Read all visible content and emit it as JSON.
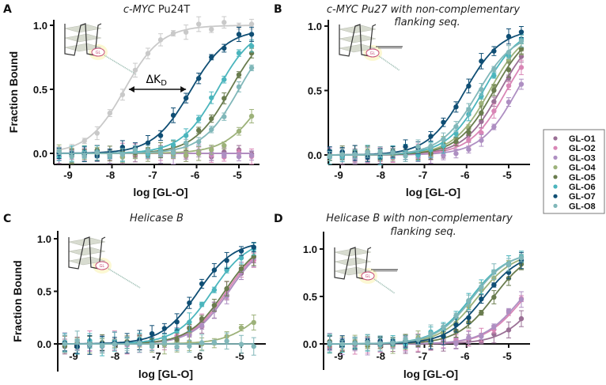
{
  "chart_data": [
    {
      "panel": "A",
      "type": "scatter",
      "title": "c-MYC Pu24T",
      "title_italic_part": "c-MYC",
      "title_rest": " Pu24T",
      "xlabel": "log [GL-O]",
      "ylabel": "Fraction Bound",
      "xlim": [
        -9.35,
        -4.6
      ],
      "ylim": [
        -0.06,
        1.0
      ],
      "xticks": [
        "-9",
        "-8",
        "-7",
        "-6",
        "-5"
      ],
      "yticks": [
        "0.0",
        "0.5",
        "1.0"
      ],
      "annotation": "ΔK",
      "annotation_sub": "D",
      "schematic": "plain",
      "series": [
        {
          "name": "reference",
          "logEC50": -7.7,
          "top": 1.0
        },
        {
          "name": "GL-O1",
          "logEC50": null,
          "top": 0
        },
        {
          "name": "GL-O2",
          "logEC50": null,
          "top": 0
        },
        {
          "name": "GL-O3",
          "logEC50": null,
          "top": 0
        },
        {
          "name": "GL-O4",
          "logEC50": -4.45,
          "top": 0.8
        },
        {
          "name": "GL-O5",
          "logEC50": -5.2,
          "top": 1.0
        },
        {
          "name": "GL-O6",
          "logEC50": -5.5,
          "top": 1.0
        },
        {
          "name": "GL-O7",
          "logEC50": -6.15,
          "top": 0.97
        },
        {
          "name": "GL-O8",
          "logEC50": -5.0,
          "top": 1.0
        }
      ]
    },
    {
      "panel": "B",
      "type": "scatter",
      "title": "c-MYC Pu27 with non-complementary flanking seq.",
      "title_line1": "c-MYC Pu27 with non-complementary",
      "title_line2": "flanking seq.",
      "xlabel": "log [GL-O]",
      "ylabel": "Fraction Bound",
      "xlim": [
        -9.35,
        -4.6
      ],
      "ylim": [
        -0.06,
        1.0
      ],
      "xticks": [
        "-9",
        "-8",
        "-7",
        "-6",
        "-5"
      ],
      "yticks": [
        "0.0",
        "0.5",
        "1.0"
      ],
      "schematic": "flank",
      "series": [
        {
          "name": "GL-O1",
          "logEC50": -5.2,
          "top": 1.0
        },
        {
          "name": "GL-O2",
          "logEC50": -5.05,
          "top": 1.0
        },
        {
          "name": "GL-O3",
          "logEC50": -4.8,
          "top": 1.0
        },
        {
          "name": "GL-O4",
          "logEC50": -5.45,
          "top": 1.0
        },
        {
          "name": "GL-O5",
          "logEC50": -5.35,
          "top": 1.0
        },
        {
          "name": "GL-O6",
          "logEC50": -5.6,
          "top": 1.0
        },
        {
          "name": "GL-O7",
          "logEC50": -6.05,
          "top": 0.98
        },
        {
          "name": "GL-O8",
          "logEC50": -5.75,
          "top": 0.95
        }
      ]
    },
    {
      "panel": "C",
      "type": "scatter",
      "title": "Helicase B",
      "xlabel": "log [GL-O]",
      "ylabel": "Fraction Bound",
      "xlim": [
        -9.45,
        -4.5
      ],
      "ylim": [
        -0.25,
        1.05
      ],
      "xticks": [
        "-9",
        "-8",
        "-7",
        "-6",
        "-5"
      ],
      "yticks": [
        "0.0",
        "0.5",
        "1.0"
      ],
      "schematic": "plain",
      "series": [
        {
          "name": "GL-O1",
          "logEC50": -5.3,
          "top": 1.0
        },
        {
          "name": "GL-O2",
          "logEC50": -5.35,
          "top": 1.0
        },
        {
          "name": "GL-O3",
          "logEC50": -5.3,
          "top": 1.0
        },
        {
          "name": "GL-O4",
          "logEC50": -4.45,
          "top": 0.6
        },
        {
          "name": "GL-O5",
          "logEC50": -5.4,
          "top": 1.0
        },
        {
          "name": "GL-O6",
          "logEC50": -5.7,
          "top": 1.0
        },
        {
          "name": "GL-O7",
          "logEC50": -6.05,
          "top": 0.98
        },
        {
          "name": "GL-O8",
          "logEC50": null,
          "top": 0
        }
      ]
    },
    {
      "panel": "D",
      "type": "scatter",
      "title": "Helicase B with non-complementary flanking seq.",
      "title_line1": "Helicase B with non-complementary",
      "title_line2": "flanking seq.",
      "xlabel": "log [GL-O]",
      "ylabel": "Fraction Bound",
      "xlim": [
        -9.45,
        -4.5
      ],
      "ylim": [
        -0.25,
        1.2
      ],
      "xticks": [
        "-9",
        "-8",
        "-7",
        "-6",
        "-5"
      ],
      "yticks": [
        "0.0",
        "0.5",
        "1.0"
      ],
      "schematic": "flank",
      "series": [
        {
          "name": "GL-O1",
          "logEC50": -4.3,
          "top": 0.9
        },
        {
          "name": "GL-O2",
          "logEC50": -4.7,
          "top": 0.9
        },
        {
          "name": "GL-O3",
          "logEC50": -4.75,
          "top": 0.9
        },
        {
          "name": "GL-O4",
          "logEC50": -5.75,
          "top": 0.97
        },
        {
          "name": "GL-O5",
          "logEC50": -5.35,
          "top": 1.0
        },
        {
          "name": "GL-O6",
          "logEC50": -5.9,
          "top": 0.97
        },
        {
          "name": "GL-O7",
          "logEC50": -5.6,
          "top": 0.97
        },
        {
          "name": "GL-O8",
          "logEC50": -5.85,
          "top": 0.98
        }
      ]
    }
  ],
  "x_points": [
    -9.25,
    -8.95,
    -8.65,
    -8.35,
    -8.05,
    -7.75,
    -7.45,
    -7.15,
    -6.85,
    -6.55,
    -6.25,
    -5.95,
    -5.65,
    -5.35,
    -5.0,
    -4.7
  ],
  "inset_label": "GL",
  "legend": {
    "items": [
      "GL-O1",
      "GL-O2",
      "GL-O3",
      "GL-O4",
      "GL-O5",
      "GL-O6",
      "GL-O7",
      "GL-O8"
    ]
  },
  "colors": {
    "reference": "#c9c9c9",
    "GL-O1": "#9a6f95",
    "GL-O2": "#d986b6",
    "GL-O3": "#ae8fc2",
    "GL-O4": "#9db27a",
    "GL-O5": "#6a7c4e",
    "GL-O6": "#4bb5bd",
    "GL-O7": "#0f4e74",
    "GL-O8": "#80b7b9"
  }
}
